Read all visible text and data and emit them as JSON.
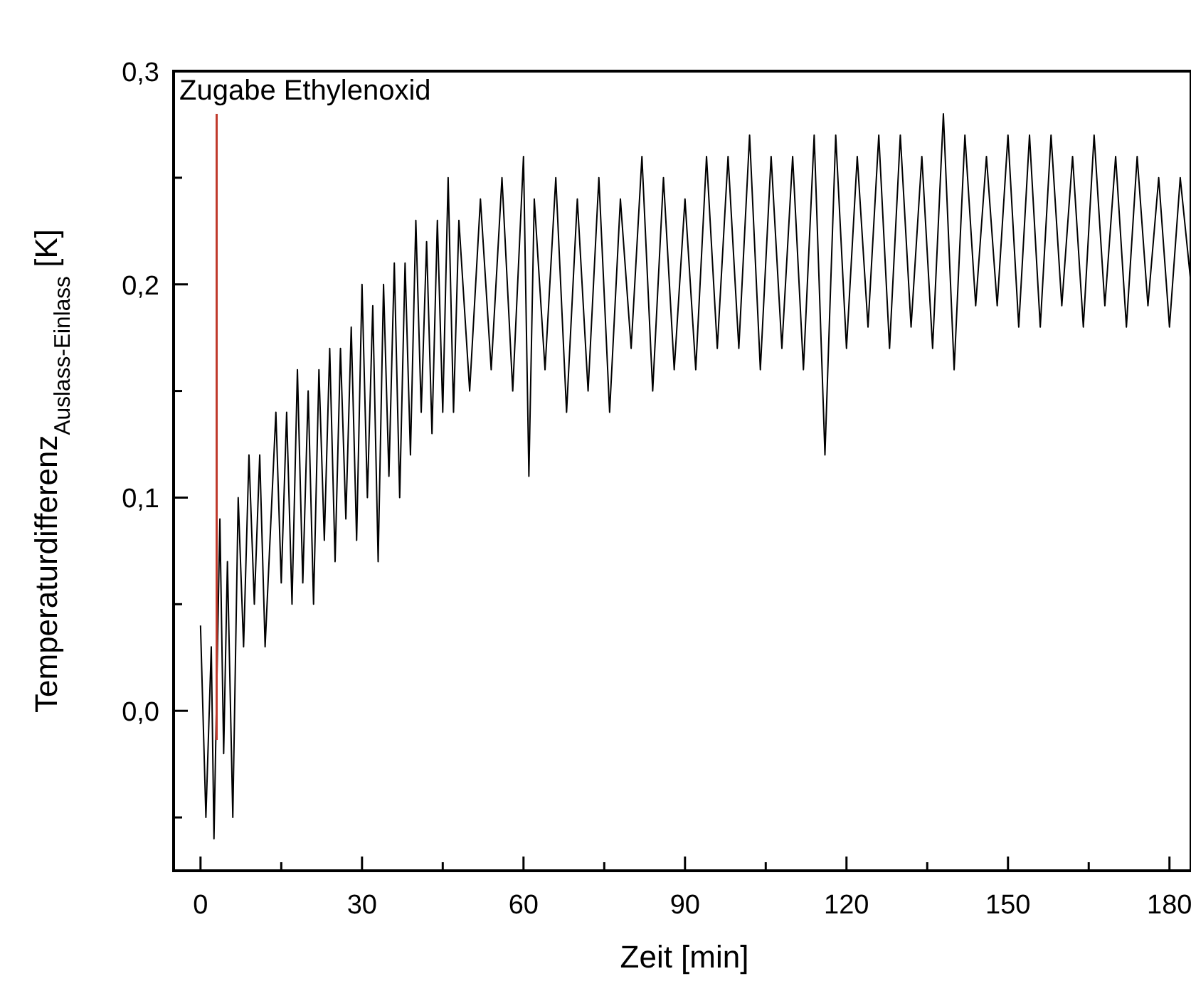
{
  "chart_data": {
    "type": "line",
    "xlabel": "Zeit [min]",
    "ylabel": "Temperaturdifferenz$_{Auslass-Einlass}$ [K]",
    "xlim": [
      -5,
      184
    ],
    "ylim": [
      -0.075,
      0.3
    ],
    "xticks": [
      0,
      {
        "value": 15,
        "label": null
      },
      30,
      {
        "value": 45,
        "label": null
      },
      60,
      {
        "value": 75,
        "label": null
      },
      90,
      {
        "value": 105,
        "label": null
      },
      120,
      {
        "value": 135,
        "label": null
      },
      150,
      {
        "value": 165,
        "label": null
      },
      180
    ],
    "yticks": [
      {
        "value": -0.05,
        "label": null
      },
      {
        "value": 0,
        "label": "0,0"
      },
      {
        "value": 0.05,
        "label": null
      },
      {
        "value": 0.1,
        "label": "0,1"
      },
      {
        "value": 0.15,
        "label": null
      },
      {
        "value": 0.2,
        "label": "0,2"
      },
      {
        "value": 0.25,
        "label": null
      },
      {
        "value": 0.3,
        "label": "0,3"
      }
    ],
    "line_style": "solid",
    "marker": "none",
    "grid": false,
    "ref_lines": [
      {
        "axis": "x",
        "value": 3,
        "label": "Zugabe Ethylenoxid",
        "color": "#c0392b"
      }
    ],
    "series": [
      {
        "color": "#000000",
        "x": [
          0,
          1,
          2,
          2.5,
          3.6,
          4.3,
          5,
          6,
          7,
          8,
          9,
          10,
          11,
          12,
          14,
          15,
          16,
          17,
          18,
          19,
          20,
          21,
          22,
          23,
          24,
          25,
          26,
          27,
          28,
          29,
          30,
          31,
          32,
          33,
          34,
          35,
          36,
          37,
          38,
          39,
          40,
          41,
          42,
          43,
          44,
          45,
          46,
          47,
          48,
          50,
          52,
          54,
          56,
          58,
          60,
          61,
          62,
          64,
          66,
          68,
          70,
          72,
          74,
          76,
          78,
          80,
          82,
          84,
          86,
          88,
          90,
          92,
          94,
          96,
          98,
          100,
          102,
          104,
          106,
          108,
          110,
          112,
          114,
          116,
          118,
          120,
          122,
          124,
          126,
          128,
          130,
          132,
          134,
          136,
          138,
          140,
          142,
          144,
          146,
          148,
          150,
          152,
          154,
          156,
          158,
          160,
          162,
          164,
          166,
          168,
          170,
          172,
          174,
          176,
          178,
          180,
          182,
          184
        ],
        "values": [
          0.04,
          -0.05,
          0.03,
          -0.06,
          0.09,
          -0.02,
          0.07,
          -0.05,
          0.1,
          0.03,
          0.12,
          0.05,
          0.12,
          0.03,
          0.14,
          0.06,
          0.14,
          0.05,
          0.16,
          0.06,
          0.15,
          0.05,
          0.16,
          0.08,
          0.17,
          0.07,
          0.17,
          0.09,
          0.18,
          0.08,
          0.2,
          0.1,
          0.19,
          0.07,
          0.2,
          0.11,
          0.21,
          0.1,
          0.21,
          0.12,
          0.23,
          0.14,
          0.22,
          0.13,
          0.23,
          0.14,
          0.25,
          0.14,
          0.23,
          0.15,
          0.24,
          0.16,
          0.25,
          0.15,
          0.26,
          0.11,
          0.24,
          0.16,
          0.25,
          0.14,
          0.24,
          0.15,
          0.25,
          0.14,
          0.24,
          0.17,
          0.26,
          0.15,
          0.25,
          0.16,
          0.24,
          0.16,
          0.26,
          0.17,
          0.26,
          0.17,
          0.27,
          0.16,
          0.26,
          0.17,
          0.26,
          0.16,
          0.27,
          0.12,
          0.27,
          0.17,
          0.26,
          0.18,
          0.27,
          0.17,
          0.27,
          0.18,
          0.26,
          0.17,
          0.28,
          0.16,
          0.27,
          0.19,
          0.26,
          0.19,
          0.27,
          0.18,
          0.27,
          0.18,
          0.27,
          0.19,
          0.26,
          0.18,
          0.27,
          0.19,
          0.26,
          0.18,
          0.26,
          0.19,
          0.25,
          0.18,
          0.25,
          0.2
        ]
      }
    ]
  }
}
